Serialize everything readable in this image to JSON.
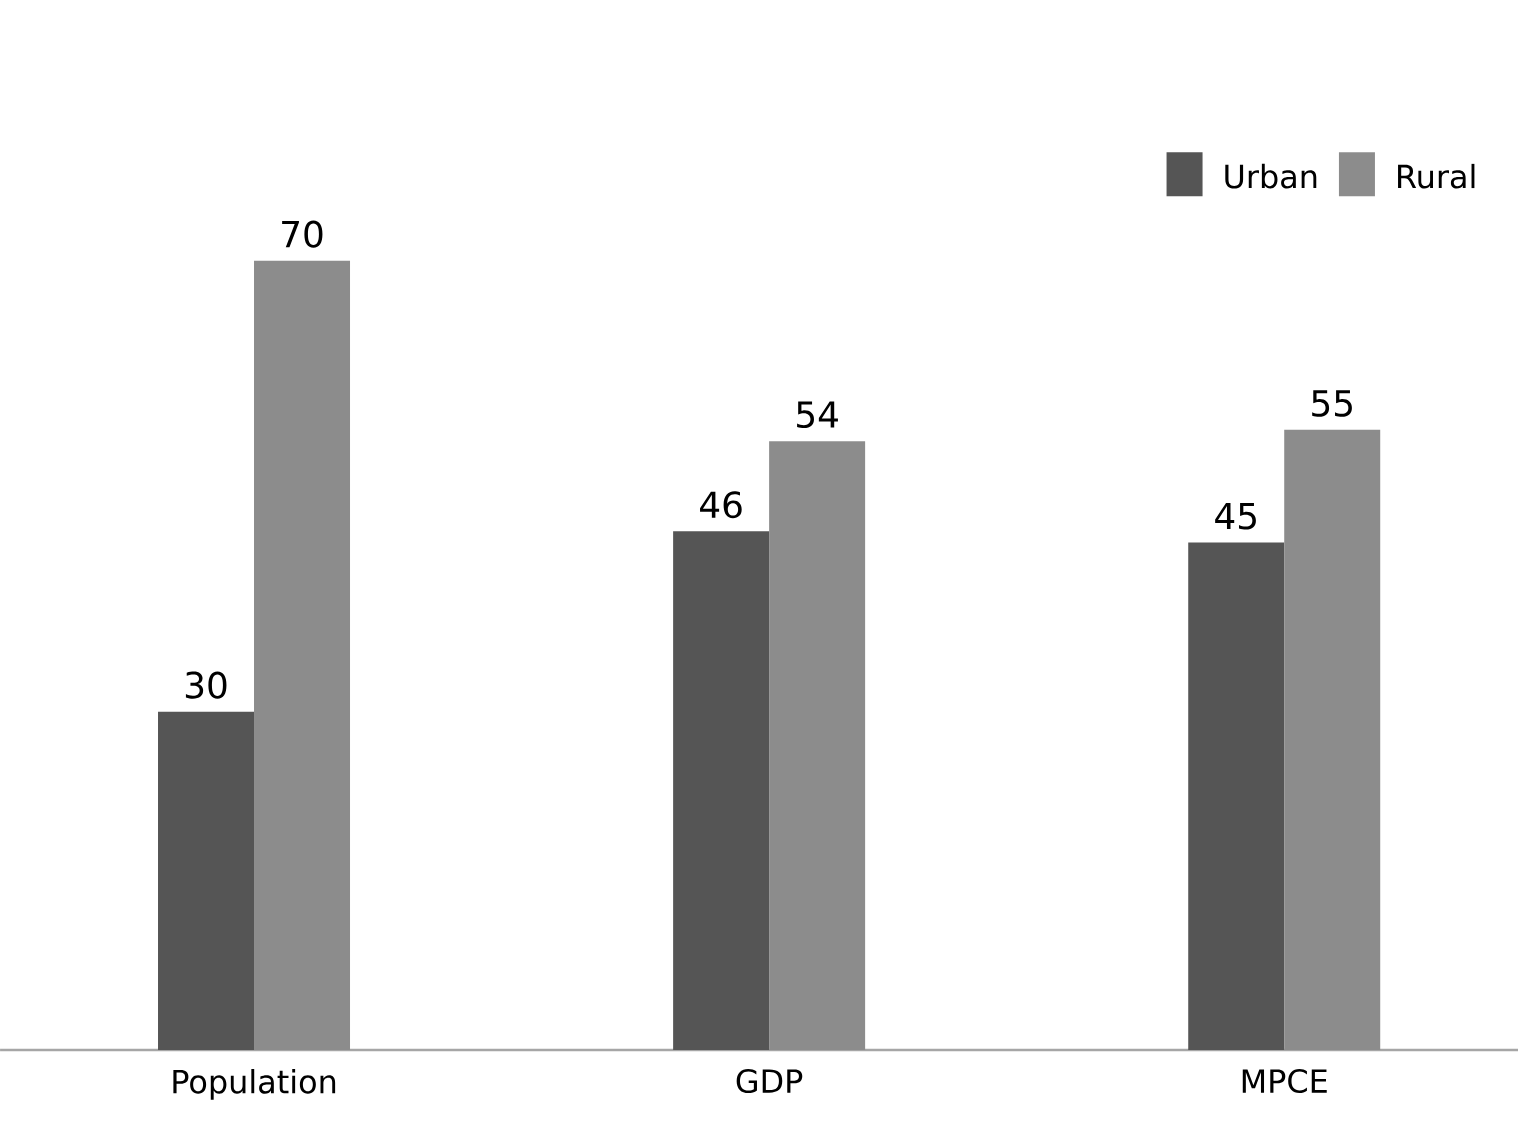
{
  "chart_data": {
    "type": "bar",
    "categories": [
      "Population",
      "GDP",
      "MPCE"
    ],
    "series": [
      {
        "name": "Urban",
        "color": "#555555",
        "values": [
          30,
          46,
          45
        ]
      },
      {
        "name": "Rural",
        "color": "#8c8c8c",
        "values": [
          70,
          54,
          55
        ]
      }
    ],
    "ylim": [
      0,
      80
    ],
    "data_labels": true,
    "legend": "top right"
  }
}
